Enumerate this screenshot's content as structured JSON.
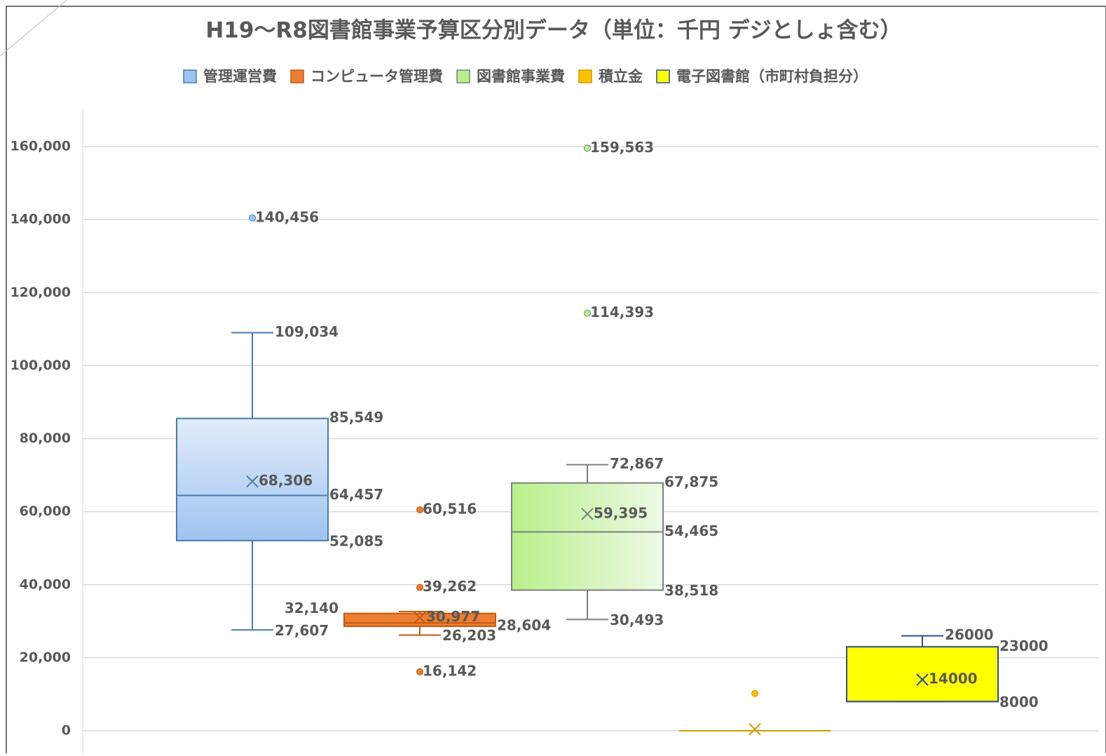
{
  "chart_data": {
    "type": "box",
    "title": "H19～R8図書館事業予算区分別データ（単位：千円 デジとしょ含む）",
    "ylim": [
      0,
      170000
    ],
    "yticks": [
      0,
      {
        "value": 20000,
        "label": "20,000"
      },
      {
        "value": 40000,
        "label": "40,000"
      },
      {
        "value": 60000,
        "label": "60,000"
      },
      {
        "value": 80000,
        "label": "80,000"
      },
      {
        "value": 100000,
        "label": "100,000"
      },
      {
        "value": 120000,
        "label": "120,000"
      },
      {
        "value": 140000,
        "label": "140,000"
      },
      {
        "value": 160000,
        "label": "160,000"
      }
    ],
    "grid": true,
    "legend": "top",
    "series": [
      {
        "name": "管理運営費",
        "color": "#9ec4f0",
        "stroke": "#4a7ab0",
        "stats": {
          "low": 27607,
          "q1": 52085,
          "median": 64457,
          "q3": 85549,
          "high": 109034,
          "mean": 68306
        },
        "outliers": [
          140456
        ],
        "value_labels": {
          "low": "27,607",
          "q1": "52,085",
          "median": "64,457",
          "q3": "85,549",
          "high": "109,034",
          "mean": "68,306"
        },
        "outlier_labels": [
          "140,456"
        ]
      },
      {
        "name": "コンピュータ管理費",
        "color": "#ed7d31",
        "stroke": "#c55a11",
        "stats": {
          "low": 26203,
          "q1": 28604,
          "median": 29500,
          "q3": 32140,
          "high": 32650,
          "mean": 30977
        },
        "outliers": [
          60516,
          39262,
          16142
        ],
        "value_labels": {
          "low": "26,203",
          "q1": "28,604",
          "q3": "32,140",
          "mean": "30,977"
        },
        "outlier_labels": [
          "60,516",
          "39,262",
          "16,142"
        ]
      },
      {
        "name": "図書館事業費",
        "color": "#b8f08a",
        "stroke": "#7f7f7f",
        "stats": {
          "low": 30493,
          "q1": 38518,
          "median": 54465,
          "q3": 67875,
          "high": 72867,
          "mean": 59395
        },
        "outliers": [
          114393,
          159563
        ],
        "value_labels": {
          "low": "30,493",
          "q1": "38,518",
          "median": "54,465",
          "q3": "67,875",
          "high": "72,867",
          "mean": "59,395"
        },
        "outlier_labels": [
          "114,393",
          "159,563"
        ]
      },
      {
        "name": "積立金",
        "color": "#ffc000",
        "stroke": "#c9a000",
        "stats": {
          "low": 0,
          "q1": 0,
          "median": 0,
          "q3": 0,
          "high": 0,
          "mean": 400
        },
        "outliers": [
          10200
        ],
        "value_labels": {},
        "outlier_labels": [
          null
        ]
      },
      {
        "name": "電子図書館（市町村負担分）",
        "color": "#ffff00",
        "stroke": "#2f4f8f",
        "stats": {
          "low": 8000,
          "q1": 8000,
          "median": 8000,
          "q3": 23000,
          "high": 26000,
          "mean": 14000
        },
        "outliers": [],
        "value_labels": {
          "q1": "8000",
          "q3": "23000",
          "high": "26000",
          "mean": "14000"
        },
        "outlier_labels": []
      }
    ]
  }
}
